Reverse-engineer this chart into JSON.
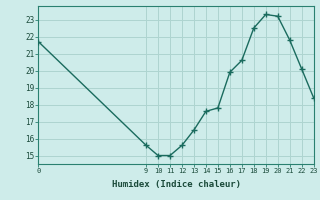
{
  "xlabel": "Humidex (Indice chaleur)",
  "background_color": "#ceecea",
  "plot_bg_color": "#ceecea",
  "grid_color": "#aed4d0",
  "line_color": "#1a6b5e",
  "marker_color": "#1a6b5e",
  "hours": [
    0,
    9,
    10,
    11,
    12,
    13,
    14,
    15,
    16,
    17,
    18,
    19,
    20,
    21,
    22,
    23
  ],
  "values": [
    21.7,
    15.6,
    15.0,
    15.0,
    15.6,
    16.5,
    17.6,
    17.8,
    19.9,
    20.6,
    22.5,
    23.3,
    23.2,
    21.8,
    20.1,
    18.4
  ],
  "xlim": [
    0,
    23
  ],
  "ylim": [
    14.5,
    23.8
  ],
  "yticks": [
    15,
    16,
    17,
    18,
    19,
    20,
    21,
    22,
    23
  ],
  "xticks": [
    0,
    9,
    10,
    11,
    12,
    13,
    14,
    15,
    16,
    17,
    18,
    19,
    20,
    21,
    22,
    23
  ]
}
